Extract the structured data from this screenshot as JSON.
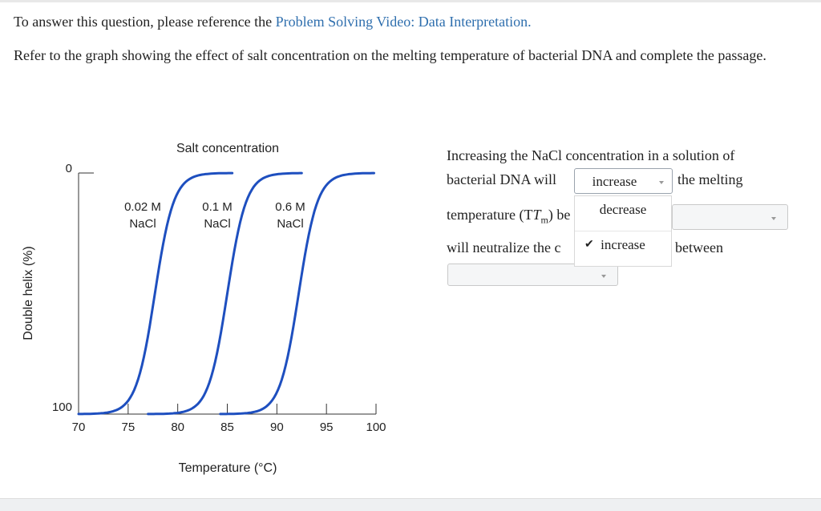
{
  "question": {
    "prefix": "To answer this question, please reference the ",
    "link_text": "Problem Solving Video: Data Interpretation.",
    "instruction": "Refer to the graph showing the effect of salt concentration on the melting temperature of bacterial DNA and complete the passage."
  },
  "chart_data": {
    "type": "line",
    "title": "Salt concentration",
    "xlabel": "Temperature (°C)",
    "ylabel": "Double helix (%)",
    "xlim": [
      70,
      100
    ],
    "ylim": [
      100,
      0
    ],
    "y_inverted": true,
    "x_ticks": [
      70,
      75,
      80,
      85,
      90,
      95,
      100
    ],
    "y_ticks": [
      0,
      100
    ],
    "grid": false,
    "series_color": "#1e4fbf",
    "series": [
      {
        "label_line1": "0.02 M",
        "label_line2": "NaCl",
        "tm": 77.7,
        "x_start": 70,
        "x_end": 85.5
      },
      {
        "label_line1": "0.1 M",
        "label_line2": "NaCl",
        "tm": 85.0,
        "x_start": 77.0,
        "x_end": 92.5
      },
      {
        "label_line1": "0.6 M",
        "label_line2": "NaCl",
        "tm": 92.2,
        "x_start": 84.3,
        "x_end": 99.8
      }
    ]
  },
  "passage": {
    "part1": "Increasing the NaCl concentration in a solution of",
    "part2": "bacterial DNA will",
    "part3": "the melting",
    "part4": "temperature",
    "tm_math": "(T",
    "tm_sub": "m",
    "tm_close": ")",
    "part5": "be",
    "part6": "will neutralize the c",
    "part7": "between"
  },
  "dropdown1": {
    "selected": "increase",
    "options": [
      {
        "label": "decrease",
        "selected": false
      },
      {
        "label": "increase",
        "selected": true
      }
    ],
    "check_glyph": "✔"
  }
}
